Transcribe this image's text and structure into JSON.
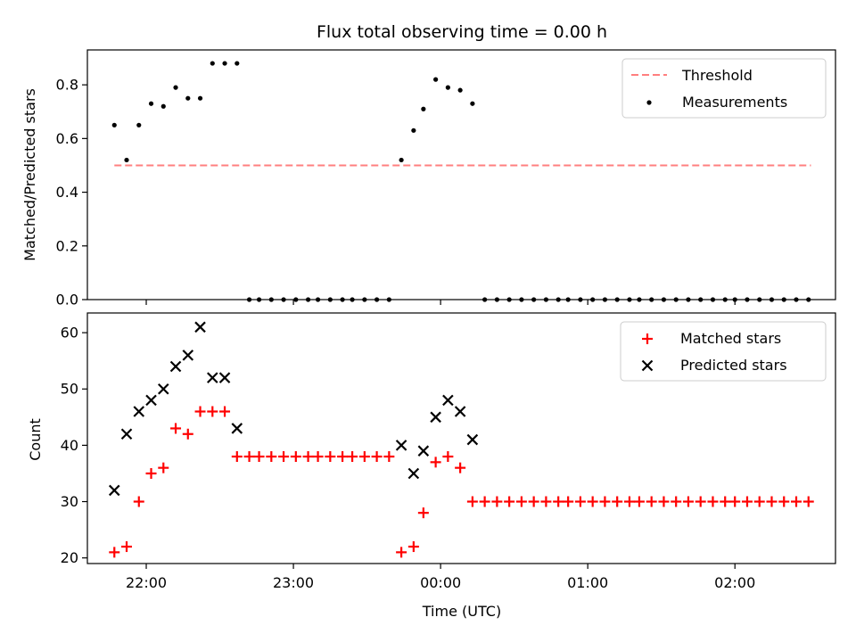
{
  "chart_data": [
    {
      "type": "scatter",
      "title": "Flux total observing time = 0.00 h",
      "xlabel": "",
      "ylabel": "Matched/Predicted stars",
      "ylim": [
        0,
        0.93
      ],
      "yticks": [
        0.0,
        0.2,
        0.4,
        0.6,
        0.8
      ],
      "ytick_labels": [
        "0.0",
        "0.2",
        "0.4",
        "0.6",
        "0.8"
      ],
      "xticks_minutes": [
        1320,
        1380,
        1440,
        1500,
        1560
      ],
      "grid": false,
      "legend_placement": "top-right",
      "series": [
        {
          "name": "Threshold",
          "style": "dashed-line",
          "color": "#ff7f7f",
          "x_minutes": [
            1307,
            1591
          ],
          "y": [
            0.5,
            0.5
          ]
        },
        {
          "name": "Measurements",
          "style": "dot",
          "color": "#000000",
          "x_minutes": [
            1307,
            1312,
            1317,
            1322,
            1327,
            1332,
            1337,
            1342,
            1347,
            1352,
            1357,
            1362,
            1366,
            1371,
            1376,
            1381,
            1386,
            1390,
            1395,
            1400,
            1404,
            1409,
            1414,
            1419,
            1424,
            1429,
            1433,
            1438,
            1443,
            1448,
            1453,
            1458,
            1463,
            1468,
            1473,
            1478,
            1483,
            1488,
            1492,
            1497,
            1502,
            1507,
            1512,
            1517,
            1521,
            1526,
            1531,
            1536,
            1541,
            1546,
            1551,
            1556,
            1560,
            1565,
            1570,
            1575,
            1580,
            1585,
            1590
          ],
          "y": [
            0.65,
            0.52,
            0.65,
            0.73,
            0.72,
            0.79,
            0.75,
            0.75,
            0.88,
            0.88,
            0.88,
            0.0,
            0.0,
            0.0,
            0.0,
            0.0,
            0.0,
            0.0,
            0.0,
            0.0,
            0.0,
            0.0,
            0.0,
            0.0,
            0.52,
            0.63,
            0.71,
            0.82,
            0.79,
            0.78,
            0.73,
            0.0,
            0.0,
            0.0,
            0.0,
            0.0,
            0.0,
            0.0,
            0.0,
            0.0,
            0.0,
            0.0,
            0.0,
            0.0,
            0.0,
            0.0,
            0.0,
            0.0,
            0.0,
            0.0,
            0.0,
            0.0,
            0.0,
            0.0,
            0.0,
            0.0,
            0.0,
            0.0,
            0.0
          ]
        }
      ]
    },
    {
      "type": "scatter",
      "title": "",
      "xlabel": "Time (UTC)",
      "ylabel": "Count",
      "ylim": [
        19,
        63.5
      ],
      "yticks": [
        20,
        30,
        40,
        50,
        60
      ],
      "ytick_labels": [
        "20",
        "30",
        "40",
        "50",
        "60"
      ],
      "xticks_minutes": [
        1320,
        1380,
        1440,
        1500,
        1560
      ],
      "xtick_labels": [
        "22:00",
        "23:00",
        "00:00",
        "01:00",
        "02:00"
      ],
      "grid": false,
      "legend_placement": "top-right",
      "series": [
        {
          "name": "Matched stars",
          "style": "plus",
          "color": "#ff0000",
          "x_minutes": [
            1307,
            1312,
            1317,
            1322,
            1327,
            1332,
            1337,
            1342,
            1347,
            1352,
            1357,
            1362,
            1366,
            1371,
            1376,
            1381,
            1386,
            1390,
            1395,
            1400,
            1404,
            1409,
            1414,
            1419,
            1424,
            1429,
            1433,
            1438,
            1443,
            1448,
            1453,
            1458,
            1463,
            1468,
            1473,
            1478,
            1483,
            1488,
            1492,
            1497,
            1502,
            1507,
            1512,
            1517,
            1521,
            1526,
            1531,
            1536,
            1541,
            1546,
            1551,
            1556,
            1560,
            1565,
            1570,
            1575,
            1580,
            1585,
            1590
          ],
          "y": [
            21,
            22,
            30,
            35,
            36,
            43,
            42,
            46,
            46,
            46,
            38,
            38,
            38,
            38,
            38,
            38,
            38,
            38,
            38,
            38,
            38,
            38,
            38,
            38,
            21,
            22,
            28,
            37,
            38,
            36,
            30,
            30,
            30,
            30,
            30,
            30,
            30,
            30,
            30,
            30,
            30,
            30,
            30,
            30,
            30,
            30,
            30,
            30,
            30,
            30,
            30,
            30,
            30,
            30,
            30,
            30,
            30,
            30,
            30
          ]
        },
        {
          "name": "Predicted stars",
          "style": "x",
          "color": "#000000",
          "x_minutes": [
            1307,
            1312,
            1317,
            1322,
            1327,
            1332,
            1337,
            1342,
            1347,
            1352,
            1357,
            1424,
            1429,
            1433,
            1438,
            1443,
            1448,
            1453
          ],
          "y": [
            32,
            42,
            46,
            48,
            50,
            54,
            56,
            61,
            52,
            52,
            43,
            40,
            35,
            39,
            45,
            48,
            46,
            41
          ]
        }
      ]
    }
  ],
  "colors": {
    "threshold": "#ff7f7f",
    "matched": "#ff0000",
    "black": "#000000"
  }
}
